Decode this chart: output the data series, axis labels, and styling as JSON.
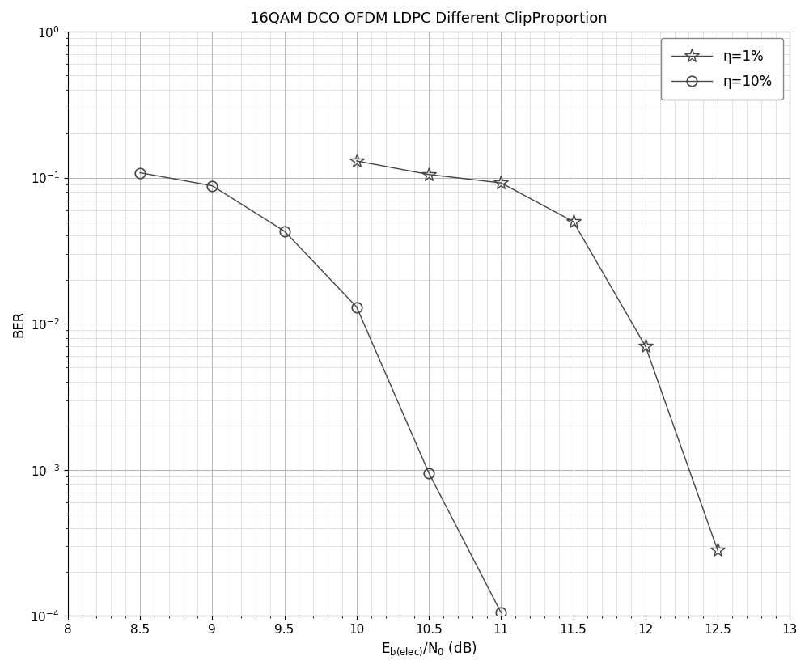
{
  "title": "16QAM DCO OFDM LDPC Different ClipProportion",
  "xlabel": "Eₑ₋ₑₗₑ⁣⁤/N₀ (dB)",
  "ylabel": "BER",
  "xlim": [
    8,
    13
  ],
  "ylim_log": [
    -4,
    0
  ],
  "xticks": [
    8,
    8.5,
    9,
    9.5,
    10,
    10.5,
    11,
    11.5,
    12,
    12.5,
    13
  ],
  "line1_label": "η=1%",
  "line2_label": "η=10%",
  "line1_x": [
    10,
    10.5,
    11,
    11.5,
    12,
    12.5
  ],
  "line1_y": [
    0.13,
    0.105,
    0.092,
    0.05,
    0.007,
    0.00028
  ],
  "line2_x": [
    8.5,
    9,
    9.5,
    10,
    10.5,
    11
  ],
  "line2_y": [
    0.108,
    0.088,
    0.043,
    0.013,
    0.00095,
    0.000105
  ],
  "line_color": "#444444",
  "bg_color": "#ffffff",
  "major_grid_color": "#aaaaaa",
  "minor_grid_color": "#cccccc",
  "title_fontsize": 13,
  "label_fontsize": 12,
  "tick_fontsize": 11,
  "legend_fontsize": 12
}
